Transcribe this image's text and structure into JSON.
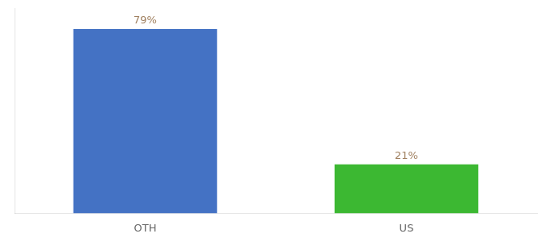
{
  "chart_data": {
    "type": "bar",
    "categories": [
      "OTH",
      "US"
    ],
    "values": [
      79,
      21
    ],
    "value_labels": [
      "79%",
      "21%"
    ],
    "colors": [
      "#4472c4",
      "#3cb832"
    ],
    "ylim": [
      0,
      88
    ],
    "grid": false,
    "data_labels": true,
    "tick_labels": "x"
  }
}
